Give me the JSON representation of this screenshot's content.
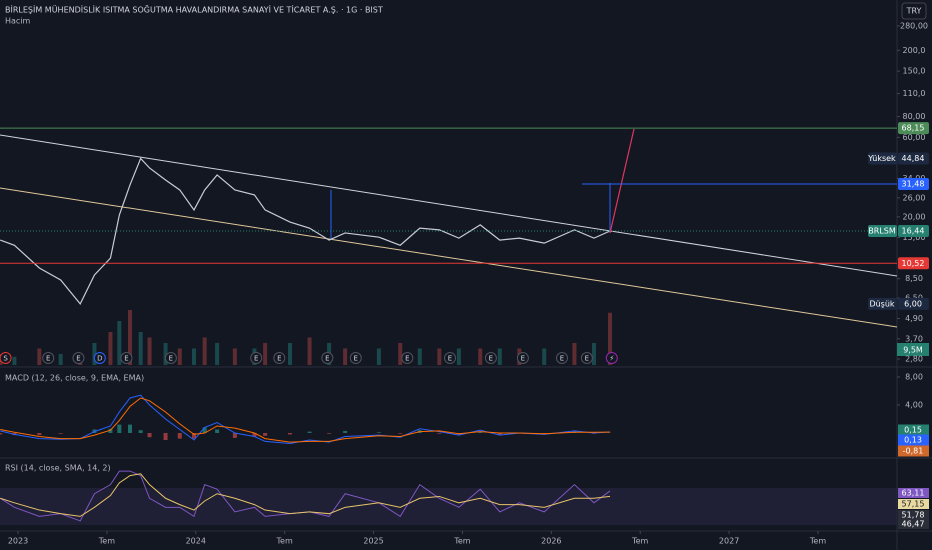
{
  "header": {
    "title": "BİRLEŞİM MÜHENDİSLİK ISITMA SOĞUTMA HAVALANDIRMA SANAYİ VE TİCARET A.Ş. · 1G · BIST",
    "volume_label": "Hacim",
    "currency": "TRY"
  },
  "price_pane": {
    "scale": "log",
    "ticks": [
      {
        "value": 280,
        "label": "280,00"
      },
      {
        "value": 200,
        "label": "200,0"
      },
      {
        "value": 150,
        "label": "150,0"
      },
      {
        "value": 110,
        "label": "110,0"
      },
      {
        "value": 80,
        "label": "80,00"
      },
      {
        "value": 60,
        "label": "60,00"
      },
      {
        "value": 34,
        "label": "34,00"
      },
      {
        "value": 26,
        "label": "26,00"
      },
      {
        "value": 20,
        "label": "20,00"
      },
      {
        "value": 15,
        "label": "15,00"
      },
      {
        "value": 8.5,
        "label": "8,50"
      },
      {
        "value": 6.5,
        "label": "6,50"
      },
      {
        "value": 4.9,
        "label": "4,90"
      },
      {
        "value": 3.7,
        "label": "3,70"
      },
      {
        "value": 2.8,
        "label": "2,80"
      }
    ],
    "series": {
      "t": [
        2022.9,
        2022.98,
        2023.12,
        2023.24,
        2023.35,
        2023.43,
        2023.52,
        2023.57,
        2023.63,
        2023.69,
        2023.74,
        2023.83,
        2023.91,
        2023.99,
        2024.05,
        2024.12,
        2024.22,
        2024.33,
        2024.39,
        2024.53,
        2024.64,
        2024.75,
        2024.84,
        2025.03,
        2025.15,
        2025.26,
        2025.37,
        2025.48,
        2025.6,
        2025.71,
        2025.82,
        2025.96,
        2026.13,
        2026.24,
        2026.33
      ],
      "price": [
        14.5,
        13.5,
        9.86,
        8.35,
        6.0,
        8.95,
        11.3,
        20.5,
        31.1,
        44.84,
        39.3,
        33.3,
        29.0,
        22.0,
        29.0,
        35.7,
        29.0,
        27.1,
        22.0,
        18.6,
        17.1,
        14.5,
        16.0,
        15.1,
        13.5,
        17.1,
        16.7,
        14.9,
        17.9,
        14.5,
        14.9,
        13.9,
        16.7,
        14.9,
        16.44
      ],
      "volume": [
        2,
        1.5,
        3,
        2,
        1.5,
        4,
        6,
        8,
        10,
        6,
        5,
        4,
        3,
        3,
        5,
        4,
        3,
        3,
        4,
        4,
        5,
        4,
        3,
        3,
        4,
        3,
        3,
        3,
        3,
        3,
        3,
        3,
        4,
        4,
        9.5
      ]
    },
    "price_labels": [
      {
        "value": 68.15,
        "label": "68,15",
        "color": "#4c8c58"
      },
      {
        "value": 44.84,
        "label": "44,84",
        "name": "Yüksek",
        "color": "#1c2940"
      },
      {
        "value": 31.48,
        "label": "31,48",
        "color": "#2962ff"
      },
      {
        "value": 16.44,
        "label": "16,44",
        "name": "BRLSM",
        "color": "#26806f"
      },
      {
        "value": 10.52,
        "label": "10,52",
        "color": "#e53935"
      },
      {
        "value": 6.0,
        "label": "6,00",
        "name": "Düşük",
        "color": "#1c2940"
      }
    ],
    "volume_value_label": "9,5M",
    "events": [
      {
        "t": 2022.93,
        "label": "S"
      },
      {
        "t": 2023.17,
        "label": "E"
      },
      {
        "t": 2023.34,
        "label": "E"
      },
      {
        "t": 2023.46,
        "label": "D"
      },
      {
        "t": 2023.61,
        "label": "E"
      },
      {
        "t": 2023.86,
        "label": "E"
      },
      {
        "t": 2024.34,
        "label": "E"
      },
      {
        "t": 2024.47,
        "label": "E"
      },
      {
        "t": 2024.74,
        "label": "E"
      },
      {
        "t": 2024.9,
        "label": "E"
      },
      {
        "t": 2025.19,
        "label": "E"
      },
      {
        "t": 2025.43,
        "label": "E"
      },
      {
        "t": 2025.66,
        "label": "E"
      },
      {
        "t": 2025.84,
        "label": "E"
      },
      {
        "t": 2026.06,
        "label": "E"
      },
      {
        "t": 2026.2,
        "label": "E"
      },
      {
        "t": 2026.34,
        "label": "⚡"
      }
    ]
  },
  "time_axis": {
    "ticks": [
      2023,
      {
        "value": 2023.5,
        "label": "Tem"
      },
      2024,
      {
        "value": 2024.5,
        "label": "Tem"
      },
      2025,
      {
        "value": 2025.5,
        "label": "Tem"
      },
      2026,
      {
        "value": 2026.5,
        "label": "Tem"
      },
      2027,
      {
        "value": 2027.5,
        "label": "Tem"
      }
    ]
  },
  "macd": {
    "title": "MACD (12, 26, close, 9, EMA, EMA)",
    "ticks": [
      {
        "value": 8,
        "label": "8,00"
      },
      {
        "value": 4,
        "label": "4,00"
      }
    ],
    "macd": [
      0.3,
      -0.2,
      -0.8,
      -0.9,
      -0.8,
      0.2,
      1.0,
      3.0,
      5.0,
      5.4,
      4.0,
      2.0,
      0.5,
      -1.0,
      0.8,
      1.5,
      0.0,
      -0.5,
      -1.2,
      -1.5,
      -1.0,
      -1.3,
      -0.5,
      -0.3,
      -0.6,
      0.6,
      0.2,
      -0.3,
      0.4,
      -0.3,
      0.0,
      -0.2,
      0.3,
      0.0,
      0.15
    ],
    "signal": [
      0.5,
      0.1,
      -0.5,
      -0.8,
      -0.8,
      -0.3,
      0.4,
      1.8,
      3.8,
      5.0,
      4.6,
      3.0,
      1.3,
      -0.2,
      0.0,
      1.0,
      0.7,
      0.0,
      -0.8,
      -1.3,
      -1.2,
      -1.2,
      -0.8,
      -0.4,
      -0.5,
      0.2,
      0.3,
      -0.1,
      0.2,
      0.0,
      0.0,
      -0.1,
      0.1,
      0.1,
      0.13
    ],
    "value_labels": [
      {
        "value": 0.15,
        "label": "0,15",
        "color": "#26806f"
      },
      {
        "value": 0.13,
        "label": "0,13",
        "color": "#2962ff"
      },
      {
        "value": -0.81,
        "label": "-0,81",
        "color": "#d0682c"
      }
    ]
  },
  "rsi": {
    "title": "RSI (14, close, SMA, 14, 2)",
    "ylim": [
      20,
      95
    ],
    "rsi": [
      55,
      45,
      35,
      38,
      30,
      60,
      70,
      85,
      85,
      80,
      55,
      45,
      45,
      35,
      70,
      65,
      40,
      45,
      35,
      38,
      40,
      35,
      60,
      50,
      35,
      70,
      55,
      45,
      65,
      40,
      50,
      40,
      70,
      50,
      63.11
    ],
    "sma": [
      55,
      50,
      42,
      38,
      35,
      45,
      58,
      72,
      80,
      82,
      70,
      55,
      48,
      42,
      52,
      60,
      55,
      48,
      42,
      38,
      40,
      38,
      45,
      50,
      45,
      55,
      57,
      50,
      55,
      48,
      48,
      45,
      55,
      55,
      57.15
    ],
    "value_labels": [
      {
        "value": 63.11,
        "label": "63,11",
        "color": "#7e57c2"
      },
      {
        "value": 57.15,
        "label": "57,15",
        "color": "#e8d9a0"
      },
      {
        "value": 51.78,
        "label": "51,78",
        "color": "#2a2e39"
      },
      {
        "value": 46.47,
        "label": "46,47",
        "color": "#2a2e39"
      }
    ]
  }
}
